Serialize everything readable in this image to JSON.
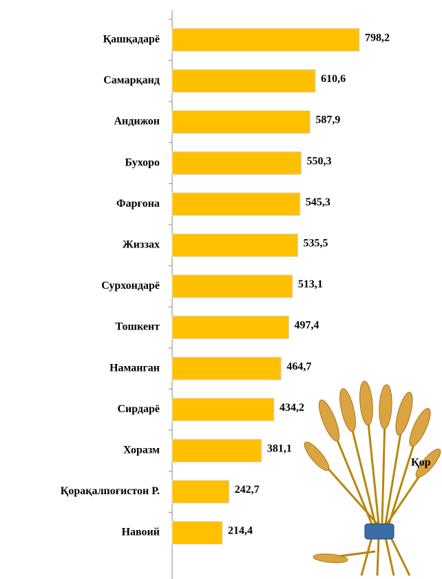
{
  "chart_data": {
    "type": "bar",
    "orientation": "horizontal",
    "categories": [
      "Қашқадарё",
      "Самарқанд",
      "Андижон",
      "Бухоро",
      "Фарғона",
      "Жиззах",
      "Сурхондарё",
      "Тошкент",
      "Наманган",
      "Сирдарё",
      "Хоразм",
      "Қорақалпоғистон Р.",
      "Навоий"
    ],
    "values": [
      798.2,
      610.6,
      587.9,
      550.3,
      545.3,
      535.5,
      513.1,
      497.4,
      464.7,
      434.2,
      381.1,
      242.7,
      214.4
    ],
    "value_labels": [
      "798,2",
      "610,6",
      "587,9",
      "550,3",
      "545,3",
      "535,5",
      "513,1",
      "497,4",
      "464,7",
      "434,2",
      "381,1",
      "242,7",
      "214,4"
    ],
    "color": "#FFC000",
    "annotation": "Қор"
  }
}
